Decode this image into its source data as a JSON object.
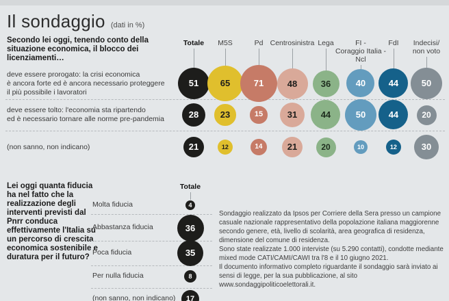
{
  "header": {
    "title": "Il sondaggio",
    "subtitle": "(dati in %)"
  },
  "colors": {
    "background": "#e4e7e9",
    "top_band": "#d5d8da",
    "divider_dash": "#b5b9bc",
    "connector": "#9aa0a4"
  },
  "chart_data": [
    {
      "type": "bubble",
      "title": "Secondo lei oggi, tenendo conto della situazione economica, il blocco dei licenziamenti…",
      "unit": "percent",
      "columns": [
        {
          "label": "Totale",
          "color": "#1d1d1b",
          "text_color": "#ffffff",
          "bold": true
        },
        {
          "label": "M5S",
          "color": "#e0bf2d",
          "text_color": "#1d1d1b"
        },
        {
          "label": "Pd",
          "color": "#c67b67",
          "text_color": "#ffffff"
        },
        {
          "label": "Centrosinistra",
          "color": "#d9a999",
          "text_color": "#1d1d1b"
        },
        {
          "label": "Lega",
          "color": "#8bb388",
          "text_color": "#1d2b1d"
        },
        {
          "label": "FI -\nCoraggio Italia -\nNcl",
          "color": "#639cbe",
          "text_color": "#ffffff"
        },
        {
          "label": "FdI",
          "color": "#15618a",
          "text_color": "#ffffff"
        },
        {
          "label": "Indecisi/\nnon voto",
          "color": "#848e95",
          "text_color": "#ffffff"
        }
      ],
      "rows": [
        {
          "label": "deve essere prorogato: la crisi economica\nè ancora forte ed è ancora necessario proteggere\nil più possibile i lavoratori",
          "values": [
            51,
            65,
            71,
            48,
            36,
            40,
            44,
            50
          ]
        },
        {
          "label": "deve essere tolto: l'economia sta ripartendo\ned è necessario tornare alle norme pre-pandemia",
          "values": [
            28,
            23,
            15,
            31,
            44,
            50,
            44,
            20
          ]
        },
        {
          "label": "(non sanno, non indicano)",
          "values": [
            21,
            12,
            14,
            21,
            20,
            10,
            12,
            30
          ]
        }
      ]
    },
    {
      "type": "bubble",
      "title": "Lei oggi quanta fiducia ha nel fatto che la realizzazione degli interventi previsti dal Pnrr conduca effettivamente l'Italia su un percorso di crescita economica sostenibile e duratura per il futuro?",
      "unit": "percent",
      "column_label": "Totale",
      "bubble_color": "#1d1d1b",
      "text_color": "#ffffff",
      "rows": [
        {
          "label": "Molta fiducia",
          "value": 4
        },
        {
          "label": "Abbastanza fiducia",
          "value": 36
        },
        {
          "label": "Poca fiducia",
          "value": 35
        },
        {
          "label": "Per nulla fiducia",
          "value": 8
        },
        {
          "label": "(non sanno, non indicano)",
          "value": 17
        }
      ]
    }
  ],
  "footnote": {
    "p1": "Sondaggio realizzato da Ipsos per Corriere della Sera presso un campione casuale nazionale rappresentativo della popolazione italiana maggiorenne secondo genere, età, livello di scolarità, area geografica di residenza, dimensione del comune di residenza.",
    "p2": "Sono state realizzate 1.000 interviste (su 5.290 contatti), condotte mediante mixed mode CATI/CAMI/CAWI tra l'8 e il 10 giugno 2021.",
    "p3": "Il documento informativo completo riguardante il sondaggio sarà inviato ai sensi di legge, per la sua pubblicazione, al sito www.sondaggipoliticoelettorali.it."
  }
}
